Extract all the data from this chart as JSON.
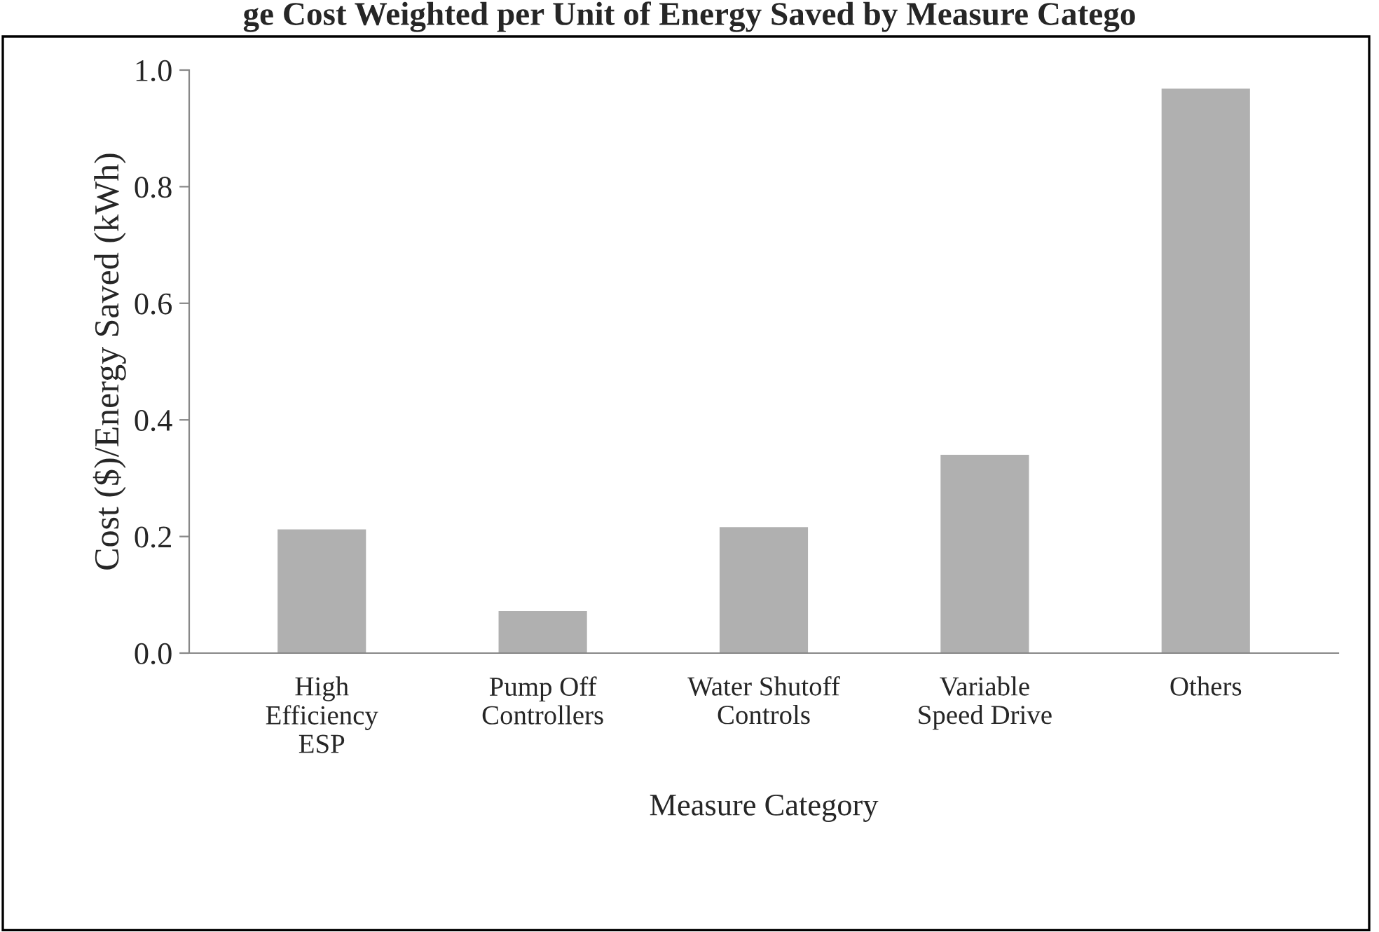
{
  "chart_data": {
    "type": "bar",
    "title": "ge Cost Weighted per Unit of Energy Saved by Measure Catego",
    "xlabel": "Measure Category",
    "ylabel": "Cost ($)/Energy Saved (kWh)",
    "categories": [
      "High\nEfficiency\nESP",
      "Pump Off\nControllers",
      "Water Shutoff\nControls",
      "Variable\nSpeed Drive",
      "Others"
    ],
    "values": [
      0.212,
      0.072,
      0.216,
      0.34,
      0.968
    ],
    "color": "#b0b0b0",
    "ylim": [
      0,
      1.0
    ],
    "yticks": [
      {
        "value": 0,
        "label": "0.0"
      },
      {
        "value": 0.2,
        "label": "0.2"
      },
      {
        "value": 0.4,
        "label": "0.4"
      },
      {
        "value": 0.6,
        "label": "0.6"
      },
      {
        "value": 0.8,
        "label": "0.8"
      },
      {
        "value": 1.0,
        "label": "1.0"
      }
    ],
    "grid": false
  }
}
